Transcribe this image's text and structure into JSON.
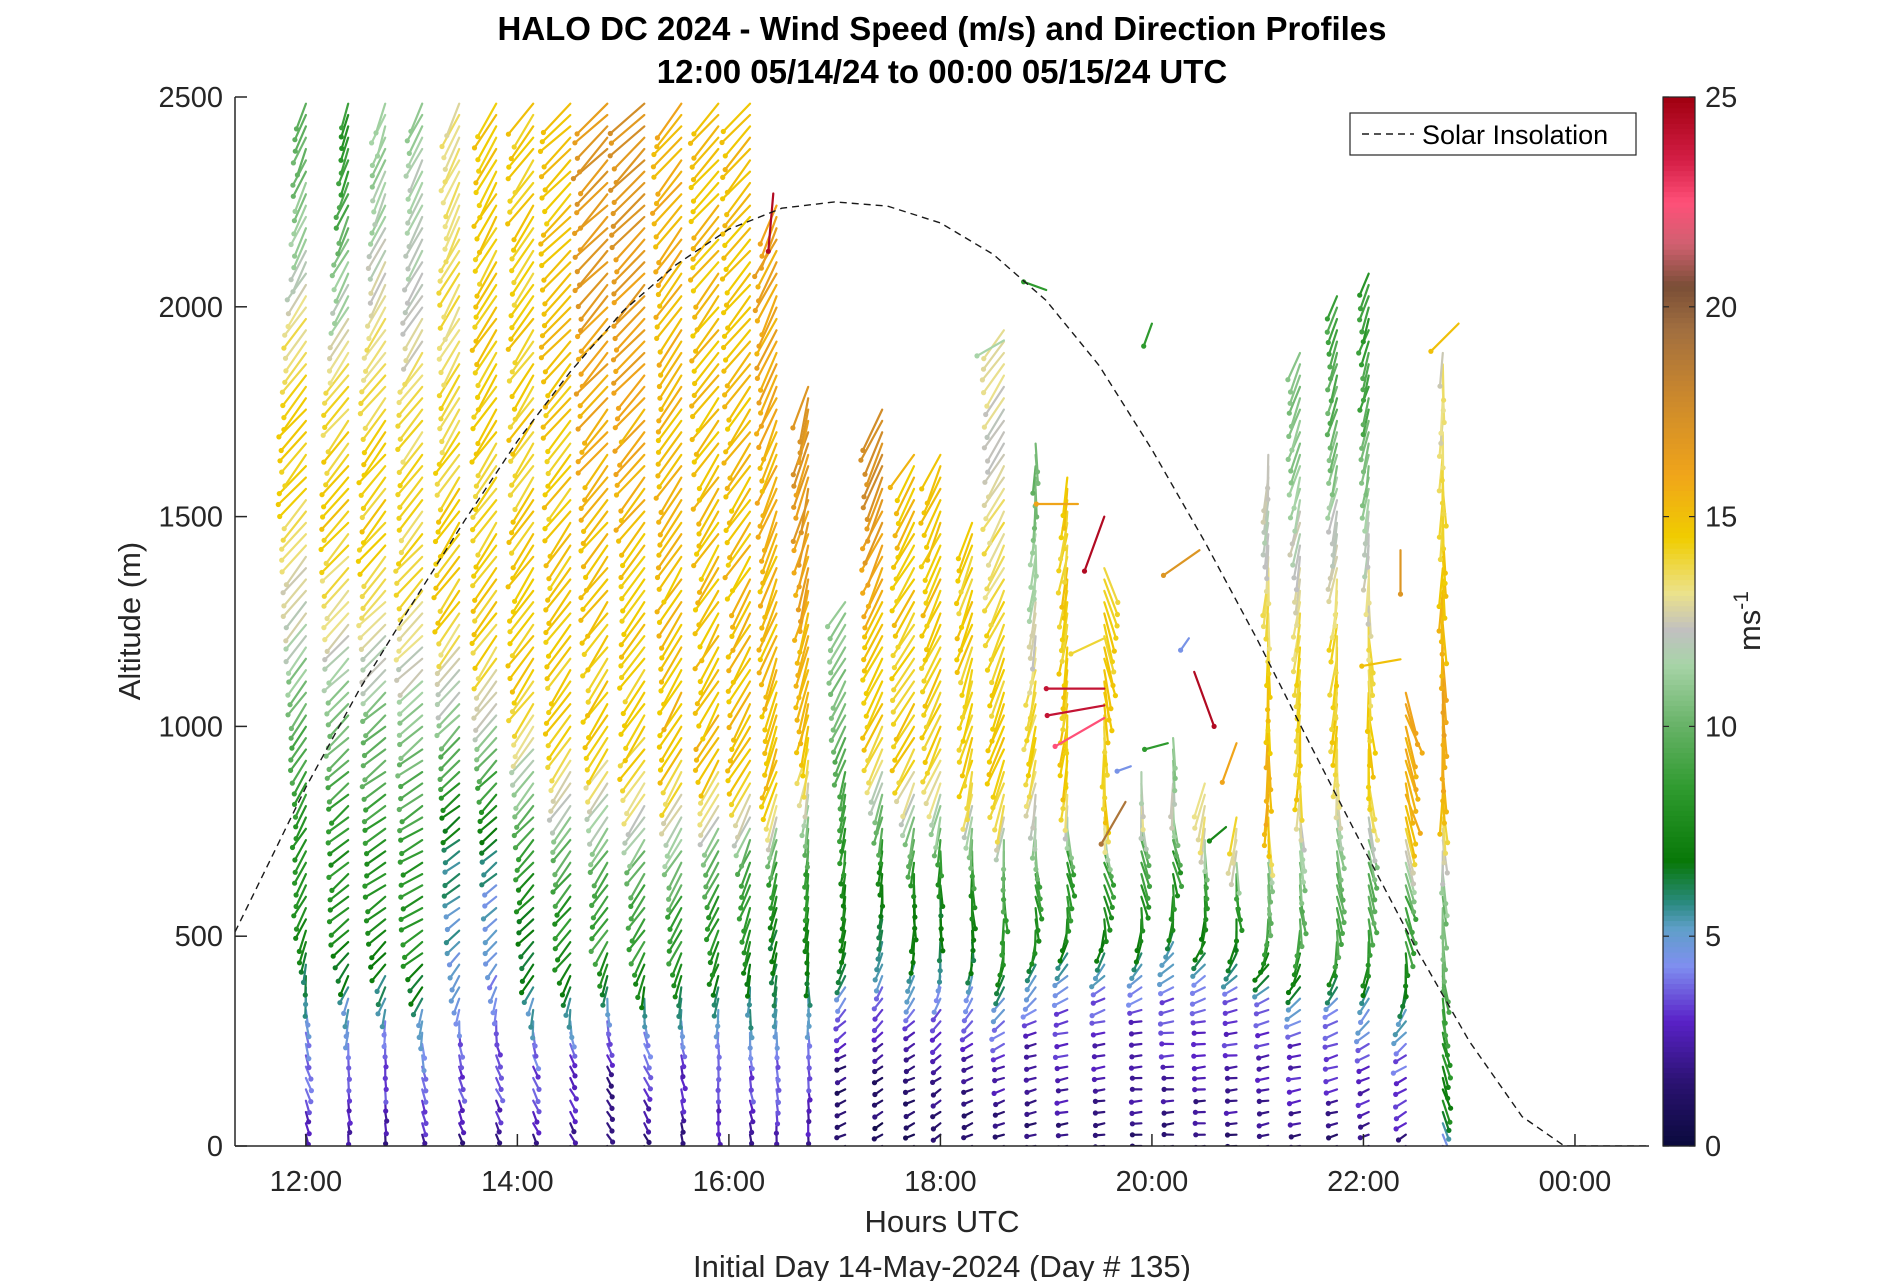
{
  "chart_data": {
    "type": "wind-barb-profile",
    "title": "HALO DC 2024 - Wind Speed (m/s) and Direction Profiles",
    "subtitle": "12:00 05/14/24 to 00:00 05/15/24  UTC",
    "xlabel": "Hours UTC",
    "xlabel_sub": "Initial Day 14-May-2024 (Day # 135)",
    "ylabel": "Altitude (m)",
    "xlim": [
      11.33,
      24.7
    ],
    "ylim": [
      0,
      2500
    ],
    "x_ticks": [
      {
        "value": 12,
        "label": "12:00"
      },
      {
        "value": 14,
        "label": "14:00"
      },
      {
        "value": 16,
        "label": "16:00"
      },
      {
        "value": 18,
        "label": "18:00"
      },
      {
        "value": 20,
        "label": "20:00"
      },
      {
        "value": 22,
        "label": "22:00"
      },
      {
        "value": 24,
        "label": "00:00"
      }
    ],
    "y_ticks": [
      {
        "value": 0,
        "label": "0"
      },
      {
        "value": 500,
        "label": "500"
      },
      {
        "value": 1000,
        "label": "1000"
      },
      {
        "value": 1500,
        "label": "1500"
      },
      {
        "value": 2000,
        "label": "2000"
      },
      {
        "value": 2500,
        "label": "2500"
      }
    ],
    "colorbar": {
      "label_main": "ms",
      "label_sup": "-1",
      "range": [
        0,
        25
      ],
      "ticks": [
        {
          "value": 0,
          "label": "0"
        },
        {
          "value": 5,
          "label": "5"
        },
        {
          "value": 10,
          "label": "10"
        },
        {
          "value": 15,
          "label": "15"
        },
        {
          "value": 20,
          "label": "20"
        },
        {
          "value": 25,
          "label": "25"
        }
      ],
      "stops": [
        {
          "v": 0,
          "c": "#0a0a3c"
        },
        {
          "v": 1.5,
          "c": "#2a1270"
        },
        {
          "v": 3,
          "c": "#5a22c8"
        },
        {
          "v": 4.3,
          "c": "#7f8ff0"
        },
        {
          "v": 5.2,
          "c": "#5f9fc8"
        },
        {
          "v": 5.8,
          "c": "#2a8a80"
        },
        {
          "v": 6.8,
          "c": "#087808"
        },
        {
          "v": 8.5,
          "c": "#2e9a2e"
        },
        {
          "v": 10,
          "c": "#66b266"
        },
        {
          "v": 11.5,
          "c": "#a8d4a8"
        },
        {
          "v": 12.3,
          "c": "#c0c0c0"
        },
        {
          "v": 13.2,
          "c": "#ece28a"
        },
        {
          "v": 14.5,
          "c": "#f0cd00"
        },
        {
          "v": 16,
          "c": "#f0a51a"
        },
        {
          "v": 18,
          "c": "#c8862e"
        },
        {
          "v": 19.5,
          "c": "#a06e40"
        },
        {
          "v": 20.5,
          "c": "#7a4e36"
        },
        {
          "v": 21.5,
          "c": "#d06070"
        },
        {
          "v": 22.5,
          "c": "#ff5078"
        },
        {
          "v": 23.5,
          "c": "#d41e46"
        },
        {
          "v": 25,
          "c": "#a00010"
        }
      ]
    },
    "legend": {
      "label": "Solar Insolation",
      "location": "top-right",
      "style": "dashed"
    },
    "solar_insolation": {
      "x": [
        11.33,
        12.0,
        12.5,
        13.0,
        13.5,
        14.0,
        14.5,
        15.0,
        15.5,
        16.0,
        16.5,
        17.0,
        17.5,
        18.0,
        18.5,
        19.0,
        19.5,
        20.0,
        20.5,
        21.0,
        21.5,
        22.0,
        22.5,
        23.0,
        23.5,
        23.9,
        24.7
      ],
      "y": [
        510,
        855,
        1085,
        1290,
        1490,
        1680,
        1845,
        1990,
        2100,
        2185,
        2235,
        2250,
        2240,
        2200,
        2125,
        2015,
        1860,
        1660,
        1440,
        1205,
        955,
        710,
        470,
        250,
        70,
        0,
        0
      ]
    },
    "profiles": [
      {
        "t": 12.0,
        "top": 2490,
        "low": 150,
        "sp_low": 3.8,
        "dir_low": 160,
        "cut1": 650,
        "sp_mid": 8.0,
        "dir_mid": 210,
        "cut2": 1700,
        "sp_high": 14.5,
        "dir_high": 220,
        "sp_top": 10.0,
        "dir_top": 200
      },
      {
        "t": 12.4,
        "top": 2490,
        "low": 150,
        "sp_low": 3.5,
        "dir_low": 175,
        "cut1": 600,
        "sp_mid": 8.0,
        "dir_mid": 230,
        "cut2": 1600,
        "sp_high": 14.5,
        "dir_high": 220,
        "sp_top": 8.5,
        "dir_top": 200
      },
      {
        "t": 12.75,
        "top": 2490,
        "low": 150,
        "sp_low": 3.5,
        "dir_low": 175,
        "cut1": 600,
        "sp_mid": 8.0,
        "dir_mid": 235,
        "cut2": 1600,
        "sp_high": 14.5,
        "dir_high": 220,
        "sp_top": 11.0,
        "dir_top": 200
      },
      {
        "t": 13.1,
        "top": 2490,
        "low": 150,
        "sp_low": 4.0,
        "dir_low": 165,
        "cut1": 550,
        "sp_mid": 8.0,
        "dir_mid": 240,
        "cut2": 1500,
        "sp_high": 14.0,
        "dir_high": 220,
        "sp_top": 11.5,
        "dir_top": 205
      },
      {
        "t": 13.45,
        "top": 2490,
        "low": 150,
        "sp_low": 3.5,
        "dir_low": 160,
        "cut1": 550,
        "sp_mid": 5.5,
        "dir_mid": 235,
        "cut2": 1400,
        "sp_high": 14.5,
        "dir_high": 215,
        "sp_top": 13.0,
        "dir_top": 205
      },
      {
        "t": 13.8,
        "top": 2490,
        "low": 150,
        "sp_low": 3.5,
        "dir_low": 155,
        "cut1": 550,
        "sp_mid": 5.0,
        "dir_mid": 230,
        "cut2": 1300,
        "sp_high": 14.5,
        "dir_high": 215,
        "sp_top": 14.5,
        "dir_top": 210
      },
      {
        "t": 14.15,
        "top": 2490,
        "low": 150,
        "sp_low": 3.5,
        "dir_low": 155,
        "cut1": 500,
        "sp_mid": 7.0,
        "dir_mid": 225,
        "cut2": 1200,
        "sp_high": 14.5,
        "dir_high": 215,
        "sp_top": 14.5,
        "dir_top": 215
      },
      {
        "t": 14.5,
        "top": 2490,
        "low": 150,
        "sp_low": 3.0,
        "dir_low": 150,
        "cut1": 500,
        "sp_mid": 8.0,
        "dir_mid": 220,
        "cut2": 1100,
        "sp_high": 14.5,
        "dir_high": 215,
        "sp_top": 15.0,
        "dir_top": 225
      },
      {
        "t": 14.85,
        "top": 2490,
        "low": 150,
        "sp_low": 2.0,
        "dir_low": 150,
        "cut1": 550,
        "sp_mid": 9.0,
        "dir_mid": 215,
        "cut2": 1050,
        "sp_high": 14.5,
        "dir_high": 215,
        "sp_top": 17.0,
        "dir_top": 225
      },
      {
        "t": 15.2,
        "top": 2490,
        "low": 150,
        "sp_low": 3.0,
        "dir_low": 150,
        "cut1": 550,
        "sp_mid": 9.0,
        "dir_mid": 215,
        "cut2": 1000,
        "sp_high": 14.5,
        "dir_high": 215,
        "sp_top": 17.0,
        "dir_top": 225
      },
      {
        "t": 15.55,
        "top": 2490,
        "low": 150,
        "sp_low": 3.0,
        "dir_low": 165,
        "cut1": 550,
        "sp_mid": 9.0,
        "dir_mid": 210,
        "cut2": 1000,
        "sp_high": 15.0,
        "dir_high": 210,
        "sp_top": 15.5,
        "dir_top": 220
      },
      {
        "t": 15.9,
        "top": 2490,
        "low": 150,
        "sp_low": 3.5,
        "dir_low": 175,
        "cut1": 550,
        "sp_mid": 8.5,
        "dir_mid": 205,
        "cut2": 1000,
        "sp_high": 15.0,
        "dir_high": 210,
        "sp_top": 15.0,
        "dir_top": 220
      },
      {
        "t": 16.2,
        "top": 2490,
        "low": 150,
        "sp_low": 3.5,
        "dir_low": 170,
        "cut1": 550,
        "sp_mid": 8.0,
        "dir_mid": 200,
        "cut2": 1000,
        "sp_high": 15.0,
        "dir_high": 210,
        "sp_top": 15.0,
        "dir_top": 220
      },
      {
        "t": 16.45,
        "top": 2250,
        "low": 150,
        "sp_low": 3.5,
        "dir_low": 175,
        "cut1": 550,
        "sp_mid": 7.0,
        "dir_mid": 195,
        "cut2": 950,
        "sp_high": 15.0,
        "dir_high": 200,
        "sp_top": 16.0,
        "dir_top": 205
      },
      {
        "t": 16.75,
        "top": 1830,
        "low": 150,
        "sp_low": 3.5,
        "dir_low": 175,
        "cut1": 600,
        "sp_mid": 8.0,
        "dir_mid": 185,
        "cut2": 1100,
        "sp_high": 15.5,
        "dir_high": 195,
        "sp_top": 17.0,
        "dir_top": 195
      },
      {
        "t": 17.1,
        "top": 1300,
        "low": 150,
        "sp_low": 1.5,
        "dir_low": 245,
        "cut1": 550,
        "sp_mid": 7.5,
        "dir_mid": 185,
        "cut2": 1250,
        "sp_high": 11.0,
        "dir_high": 210,
        "sp_top": 11.5,
        "dir_top": 215
      },
      {
        "t": 17.45,
        "top": 1780,
        "low": 150,
        "sp_low": 1.5,
        "dir_low": 240,
        "cut1": 600,
        "sp_mid": 7.0,
        "dir_mid": 185,
        "cut2": 1050,
        "sp_high": 14.5,
        "dir_high": 205,
        "sp_top": 17.5,
        "dir_top": 205
      },
      {
        "t": 17.75,
        "top": 1650,
        "low": 150,
        "sp_low": 1.5,
        "dir_low": 245,
        "cut1": 550,
        "sp_mid": 7.0,
        "dir_mid": 180,
        "cut2": 1000,
        "sp_high": 14.5,
        "dir_high": 210,
        "sp_top": 15.0,
        "dir_top": 210
      },
      {
        "t": 18.0,
        "top": 1650,
        "low": 150,
        "sp_low": 2.0,
        "dir_low": 235,
        "cut1": 550,
        "sp_mid": 6.5,
        "dir_mid": 175,
        "cut2": 1000,
        "sp_high": 14.5,
        "dir_high": 205,
        "sp_top": 15.0,
        "dir_top": 205
      },
      {
        "t": 18.3,
        "top": 1500,
        "low": 150,
        "sp_low": 2.0,
        "dir_low": 245,
        "cut1": 550,
        "sp_mid": 7.0,
        "dir_mid": 175,
        "cut2": 950,
        "sp_high": 14.5,
        "dir_high": 195,
        "sp_top": 14.5,
        "dir_top": 200
      },
      {
        "t": 18.6,
        "top": 1960,
        "low": 150,
        "sp_low": 2.5,
        "dir_low": 250,
        "cut1": 600,
        "sp_mid": 9.0,
        "dir_mid": 175,
        "cut2": 900,
        "sp_high": 14.5,
        "dir_high": 200,
        "sp_top": 12.5,
        "dir_top": 215
      },
      {
        "t": 18.9,
        "top": 1700,
        "low": 200,
        "sp_low": 2.5,
        "dir_low": 255,
        "cut1": 600,
        "sp_mid": 8.5,
        "dir_mid": 170,
        "cut2": 950,
        "sp_high": 14.0,
        "dir_high": 195,
        "sp_top": 10.0,
        "dir_top": 180
      },
      {
        "t": 19.2,
        "top": 1610,
        "low": 250,
        "sp_low": 3.0,
        "dir_low": 260,
        "cut1": 650,
        "sp_mid": 8.5,
        "dir_mid": 165,
        "cut2": 900,
        "sp_high": 14.5,
        "dir_high": 185,
        "sp_top": 14.5,
        "dir_top": 190
      },
      {
        "t": 19.55,
        "top": 1400,
        "low": 250,
        "sp_low": 3.0,
        "dir_low": 260,
        "cut1": 650,
        "sp_mid": 8.5,
        "dir_mid": 160,
        "cut2": 850,
        "sp_high": 14.5,
        "dir_high": 180,
        "sp_top": 14.5,
        "dir_top": 160
      },
      {
        "t": 19.9,
        "top": 900,
        "low": 250,
        "sp_low": 3.0,
        "dir_low": 265,
        "cut1": 650,
        "sp_mid": 8.5,
        "dir_mid": 160,
        "cut2": 850,
        "sp_high": 13.0,
        "dir_high": 180,
        "sp_top": 12.0,
        "dir_top": 180
      },
      {
        "t": 20.2,
        "top": 980,
        "low": 250,
        "sp_low": 3.0,
        "dir_low": 265,
        "cut1": 700,
        "sp_mid": 8.5,
        "dir_mid": 165,
        "cut2": 850,
        "sp_high": 12.0,
        "dir_high": 180,
        "sp_top": 11.0,
        "dir_top": 180
      },
      {
        "t": 20.5,
        "top": 880,
        "low": 250,
        "sp_low": 3.0,
        "dir_low": 265,
        "cut1": 650,
        "sp_mid": 8.5,
        "dir_mid": 170,
        "cut2": 800,
        "sp_high": 13.5,
        "dir_high": 190,
        "sp_top": 13.5,
        "dir_top": 200
      },
      {
        "t": 20.8,
        "top": 790,
        "low": 250,
        "sp_low": 3.0,
        "dir_low": 265,
        "cut1": 600,
        "sp_mid": 8.0,
        "dir_mid": 170,
        "cut2": 750,
        "sp_high": 13.5,
        "dir_high": 190,
        "sp_top": 13.5,
        "dir_top": 190
      },
      {
        "t": 21.1,
        "top": 1670,
        "low": 250,
        "sp_low": 3.0,
        "dir_low": 260,
        "cut1": 600,
        "sp_mid": 10.0,
        "dir_mid": 175,
        "cut2": 850,
        "sp_high": 15.5,
        "dir_high": 180,
        "sp_top": 12.0,
        "dir_top": 185
      },
      {
        "t": 21.4,
        "top": 1910,
        "low": 200,
        "sp_low": 3.0,
        "dir_low": 260,
        "cut1": 600,
        "sp_mid": 10.0,
        "dir_mid": 170,
        "cut2": 950,
        "sp_high": 14.5,
        "dir_high": 185,
        "sp_top": 10.5,
        "dir_top": 200
      },
      {
        "t": 21.75,
        "top": 2030,
        "low": 200,
        "sp_low": 3.0,
        "dir_low": 255,
        "cut1": 600,
        "sp_mid": 10.0,
        "dir_mid": 165,
        "cut2": 1050,
        "sp_high": 14.5,
        "dir_high": 185,
        "sp_top": 9.0,
        "dir_top": 200
      },
      {
        "t": 22.05,
        "top": 2080,
        "low": 150,
        "sp_low": 3.0,
        "dir_low": 245,
        "cut1": 600,
        "sp_mid": 9.5,
        "dir_mid": 165,
        "cut2": 950,
        "sp_high": 14.5,
        "dir_high": 175,
        "sp_top": 8.5,
        "dir_top": 200
      },
      {
        "t": 22.4,
        "top": 1080,
        "low": 150,
        "sp_low": 3.5,
        "dir_low": 240,
        "cut1": 550,
        "sp_mid": 9.0,
        "dir_mid": 160,
        "cut2": 850,
        "sp_high": 15.5,
        "dir_high": 165,
        "sp_top": 16.0,
        "dir_top": 160
      },
      {
        "t": 22.75,
        "top": 1890,
        "low": 100,
        "sp_low": 7.5,
        "dir_low": 160,
        "cut1": 500,
        "sp_mid": 10.0,
        "dir_mid": 175,
        "cut2": 1000,
        "sp_high": 16.0,
        "dir_high": 180,
        "sp_top": 13.0,
        "dir_top": 180
      }
    ],
    "isolated_barbs": [
      {
        "t": 16.42,
        "z": 2270,
        "sp": 24.5,
        "dir": 185
      },
      {
        "t": 18.6,
        "z": 1920,
        "sp": 11.5,
        "dir": 240
      },
      {
        "t": 19.0,
        "z": 2040,
        "sp": 8.5,
        "dir": 290
      },
      {
        "t": 20.0,
        "z": 1960,
        "sp": 8.5,
        "dir": 200
      },
      {
        "t": 19.3,
        "z": 1530,
        "sp": 16.0,
        "dir": 270
      },
      {
        "t": 19.55,
        "z": 1500,
        "sp": 24.5,
        "dir": 200
      },
      {
        "t": 20.45,
        "z": 1420,
        "sp": 17.0,
        "dir": 235
      },
      {
        "t": 22.35,
        "z": 1420,
        "sp": 17.0,
        "dir": 180
      },
      {
        "t": 19.55,
        "z": 1210,
        "sp": 14.0,
        "dir": 245
      },
      {
        "t": 20.35,
        "z": 1210,
        "sp": 4.5,
        "dir": 215
      },
      {
        "t": 20.4,
        "z": 1130,
        "sp": 24.5,
        "dir": 160
      },
      {
        "t": 22.35,
        "z": 1160,
        "sp": 15.0,
        "dir": 260
      },
      {
        "t": 19.55,
        "z": 1090,
        "sp": 24.0,
        "dir": 270
      },
      {
        "t": 19.55,
        "z": 1050,
        "sp": 24.0,
        "dir": 260
      },
      {
        "t": 19.55,
        "z": 1020,
        "sp": 22.5,
        "dir": 240
      },
      {
        "t": 19.8,
        "z": 905,
        "sp": 4.5,
        "dir": 250
      },
      {
        "t": 20.15,
        "z": 960,
        "sp": 8.5,
        "dir": 255
      },
      {
        "t": 20.8,
        "z": 960,
        "sp": 16.0,
        "dir": 200
      },
      {
        "t": 19.75,
        "z": 820,
        "sp": 19.0,
        "dir": 210
      },
      {
        "t": 20.7,
        "z": 760,
        "sp": 7.5,
        "dir": 230
      },
      {
        "t": 22.9,
        "z": 1960,
        "sp": 15.0,
        "dir": 225
      }
    ]
  }
}
